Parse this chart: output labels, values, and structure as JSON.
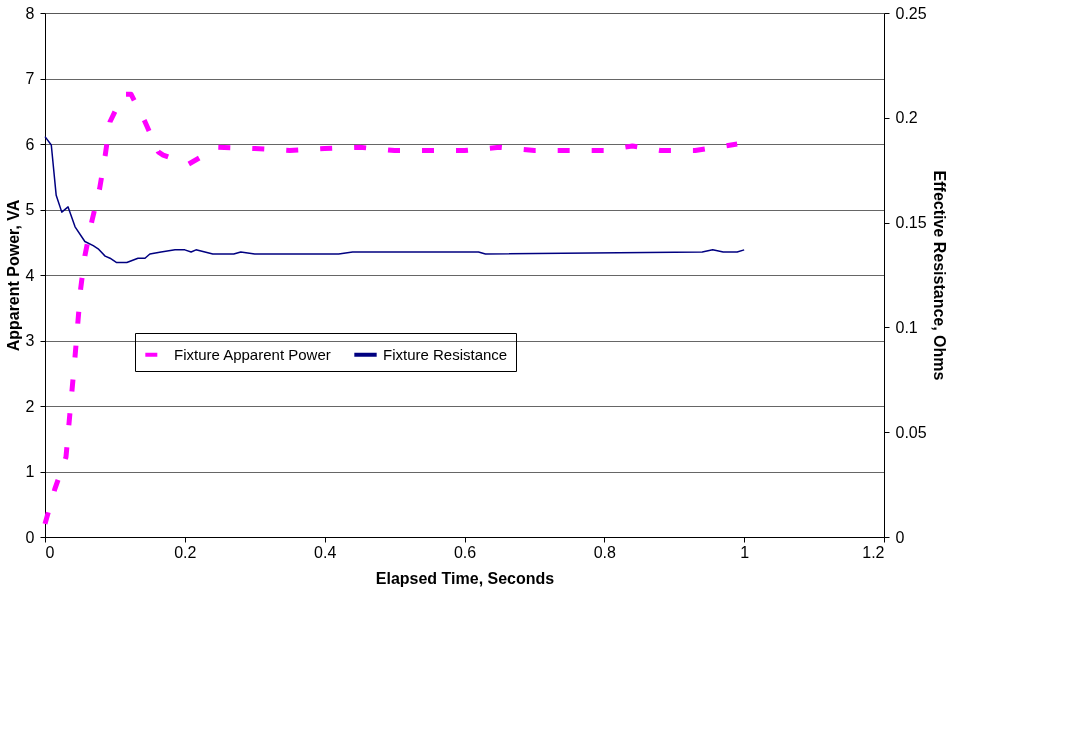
{
  "chart_data": {
    "type": "line",
    "xlabel": "Elapsed Time, Seconds",
    "ylabel": "Apparent Power, VA",
    "y2label": "Effective Resistance, Ohms",
    "xlim": [
      0,
      1.2
    ],
    "xticks": [
      0,
      0.2,
      0.4,
      0.6,
      0.8,
      1,
      1.2
    ],
    "ylim": [
      0,
      8
    ],
    "yticks": [
      0,
      1,
      2,
      3,
      4,
      5,
      6,
      7,
      8
    ],
    "y2lim": [
      0,
      0.25
    ],
    "y2ticks": [
      0,
      0.05,
      0.1,
      0.15,
      0.2,
      0.25
    ],
    "grid": "y",
    "legend": "left",
    "marker": "none",
    "series": [
      {
        "name": "Fixture Apparent Power",
        "color": "#ff00ff",
        "line_style": "dashed",
        "x": [
          0,
          0.014,
          0.03,
          0.043,
          0.051,
          0.057,
          0.067,
          0.078,
          0.086,
          0.093,
          0.112,
          0.123,
          0.143,
          0.162,
          0.169,
          0.205,
          0.247,
          0.3,
          0.35,
          0.4,
          0.45,
          0.5,
          0.55,
          0.6,
          0.65,
          0.7,
          0.75,
          0.8,
          0.84,
          0.88,
          0.93,
          0.99
        ],
        "values": [
          0.2,
          0.73,
          1.22,
          2.76,
          3.79,
          4.29,
          4.82,
          5.31,
          5.82,
          6.34,
          6.76,
          6.76,
          6.34,
          5.88,
          5.83,
          5.69,
          5.95,
          5.93,
          5.9,
          5.93,
          5.95,
          5.9,
          5.9,
          5.9,
          5.95,
          5.9,
          5.9,
          5.9,
          5.97,
          5.9,
          5.9,
          6.0
        ]
      },
      {
        "name": "Fixture Resistance",
        "color": "#000080",
        "line_style": "solid",
        "axis": "y2",
        "x": [
          0,
          0.009,
          0.016,
          0.024,
          0.033,
          0.043,
          0.057,
          0.069,
          0.076,
          0.086,
          0.093,
          0.102,
          0.117,
          0.133,
          0.143,
          0.15,
          0.166,
          0.186,
          0.2,
          0.209,
          0.216,
          0.24,
          0.27,
          0.28,
          0.3,
          0.42,
          0.44,
          0.62,
          0.63,
          0.94,
          0.955,
          0.97,
          0.99,
          1.0
        ],
        "values": [
          0.191,
          0.187,
          0.163,
          0.155,
          0.1575,
          0.148,
          0.141,
          0.139,
          0.1375,
          0.134,
          0.133,
          0.131,
          0.131,
          0.133,
          0.133,
          0.135,
          0.136,
          0.137,
          0.137,
          0.136,
          0.137,
          0.135,
          0.135,
          0.136,
          0.135,
          0.135,
          0.136,
          0.136,
          0.135,
          0.136,
          0.137,
          0.136,
          0.136,
          0.137
        ]
      }
    ]
  }
}
